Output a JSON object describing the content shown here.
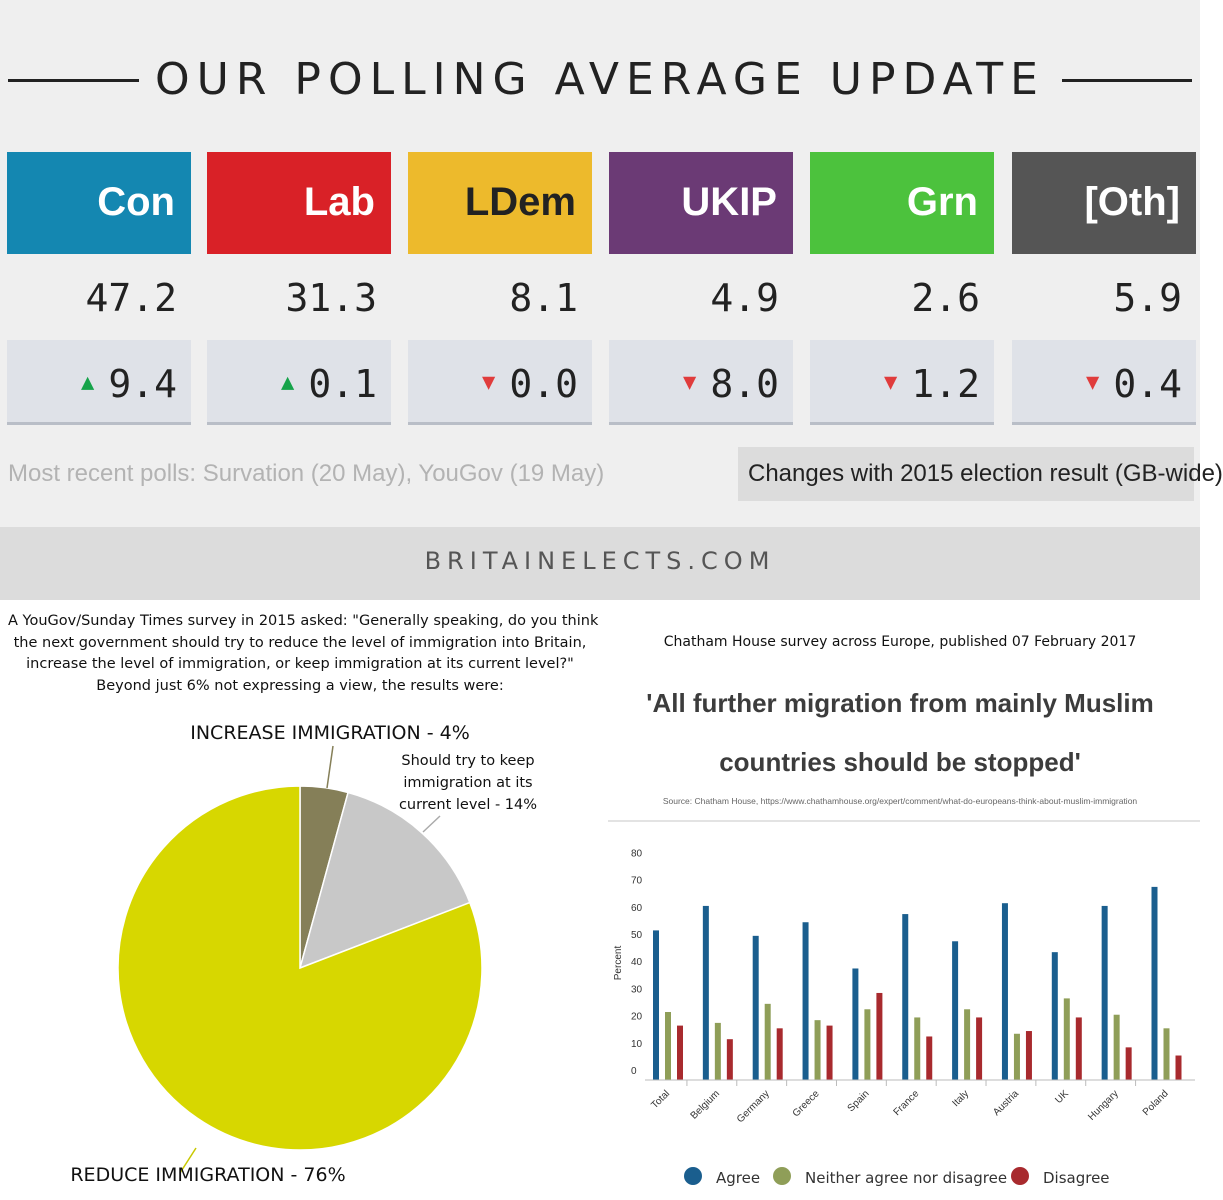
{
  "header": {
    "title": "OUR POLLING AVERAGE UPDATE"
  },
  "parties": [
    {
      "name": "Con",
      "value": "47.2",
      "change": "9.4",
      "direction": "up",
      "color": "#1487b1"
    },
    {
      "name": "Lab",
      "value": "31.3",
      "change": "0.1",
      "direction": "up",
      "color": "#d92127"
    },
    {
      "name": "LDem",
      "value": "8.1",
      "change": "0.0",
      "direction": "down",
      "color": "#edba2c"
    },
    {
      "name": "UKIP",
      "value": "4.9",
      "change": "8.0",
      "direction": "down",
      "color": "#6b3a75"
    },
    {
      "name": "Grn",
      "value": "2.6",
      "change": "1.2",
      "direction": "down",
      "color": "#4cc23d"
    },
    {
      "name": "[Oth]",
      "value": "5.9",
      "change": "0.4",
      "direction": "down",
      "color": "#555555"
    }
  ],
  "colors": {
    "up_arrow": "#16a34a",
    "down_arrow": "#e03c3c",
    "ldem_text": "#222222"
  },
  "footer": {
    "polls_note": "Most recent polls: Survation (20 May), YouGov (19 May)",
    "changes_note": "Changes with 2015 election result (GB-wide)",
    "site": "BRITAINELECTS.COM"
  },
  "pie": {
    "intro_lines": [
      "A YouGov/Sunday Times survey in 2015 asked: \"Generally speaking, do you think",
      "the next government should try to reduce the level of immigration into Britain,",
      "increase the level of immigration, or keep immigration at its current level?\"",
      "Beyond just 6% not expressing a view, the results were:"
    ],
    "labels": {
      "increase": "INCREASE IMMIGRATION - 4%",
      "keep": [
        "Should try to keep",
        "immigration at its",
        "current level - 14%"
      ],
      "reduce": "REDUCE IMMIGRATION - 76%"
    }
  },
  "chart_data": [
    {
      "type": "pie",
      "slices": [
        {
          "name": "Increase immigration",
          "value": 4,
          "color": "#857f58"
        },
        {
          "name": "Keep at current level",
          "value": 14,
          "color": "#c8c8c8"
        },
        {
          "name": "Reduce immigration",
          "value": 76,
          "color": "#d7d700"
        }
      ]
    },
    {
      "type": "bar",
      "subtitle": "Chatham House survey across Europe, published 07 February 2017",
      "title_lines": [
        "'All further migration from mainly Muslim",
        "countries should be stopped'"
      ],
      "source": "Source: Chatham House, https://www.chathamhouse.org/expert/comment/what-do-europeans-think-about-muslim-immigration",
      "ylabel": "Percent",
      "ylim": [
        0,
        80
      ],
      "yticks": [
        0,
        10,
        20,
        30,
        40,
        50,
        60,
        70,
        80
      ],
      "categories": [
        "Total",
        "Belgium",
        "Germany",
        "Greece",
        "Spain",
        "France",
        "Italy",
        "Austria",
        "UK",
        "Hungary",
        "Poland"
      ],
      "series": [
        {
          "name": "Agree",
          "color": "#1a5e8e",
          "values": [
            55,
            64,
            53,
            58,
            41,
            61,
            51,
            65,
            47,
            64,
            71
          ]
        },
        {
          "name": "Neither agree nor disagree",
          "color": "#8f9e58",
          "values": [
            25,
            21,
            28,
            22,
            26,
            23,
            26,
            17,
            30,
            24,
            19
          ]
        },
        {
          "name": "Disagree",
          "color": "#a82a2e",
          "values": [
            20,
            15,
            19,
            20,
            32,
            16,
            23,
            18,
            23,
            12,
            9
          ]
        }
      ],
      "legend_position": "bottom",
      "grid": false
    }
  ]
}
